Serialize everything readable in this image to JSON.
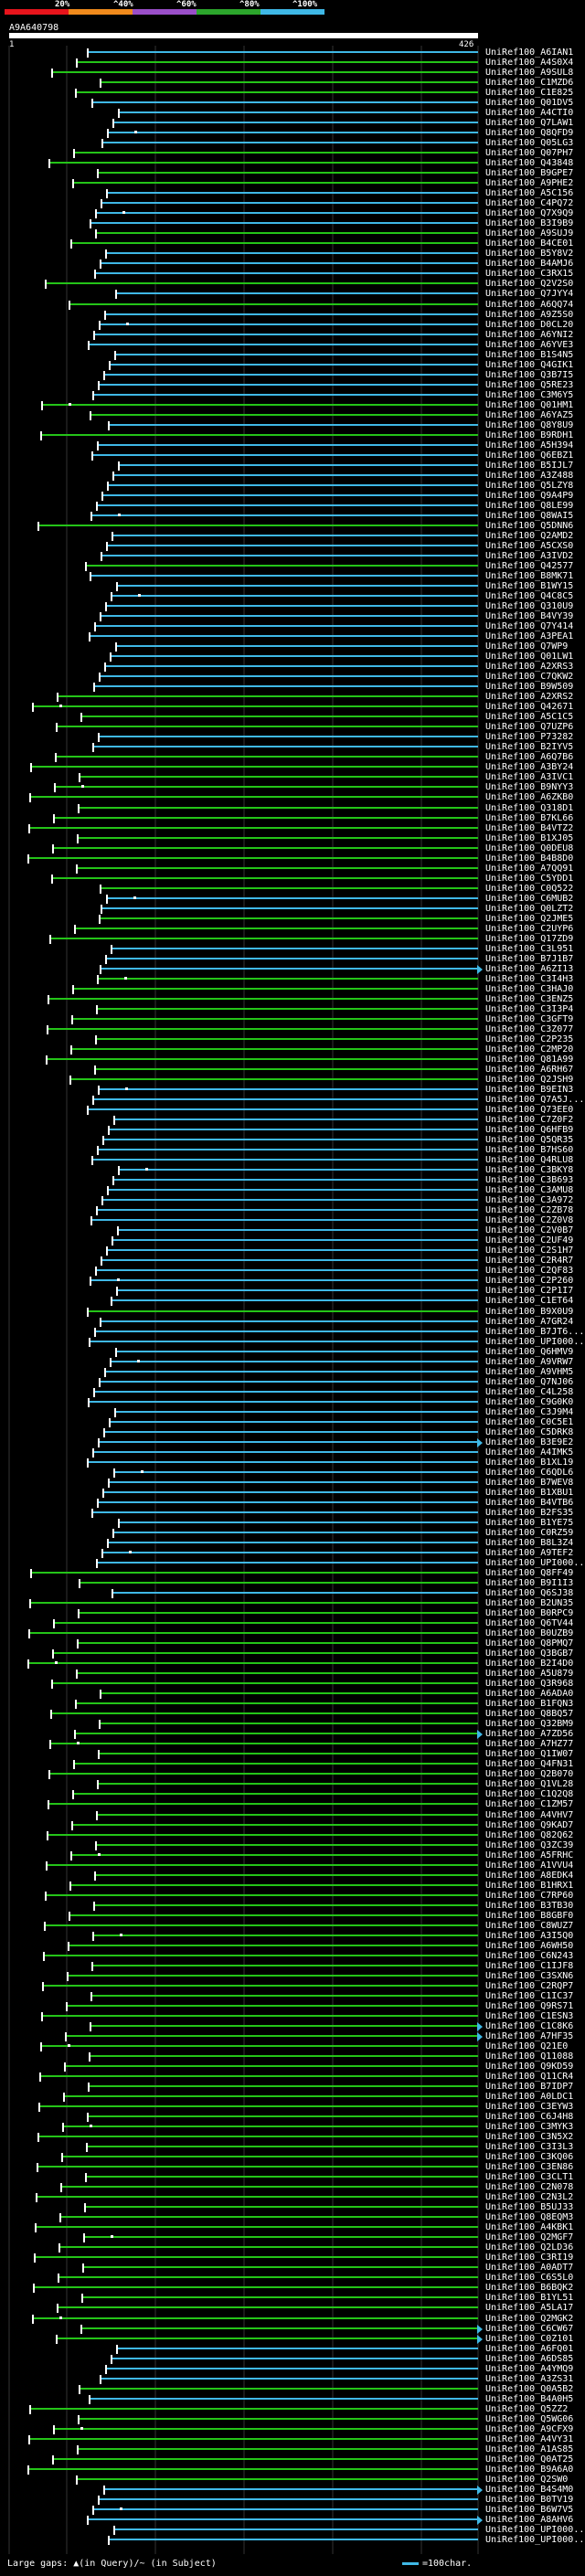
{
  "scale": {
    "labels": [
      "20%",
      "^40%",
      "^60%",
      "^80%",
      "^100%"
    ],
    "bands": [
      "#e8141c",
      "#f08a1c",
      "#9a4ec8",
      "#2ca62c",
      "#3fb8e6"
    ]
  },
  "query": {
    "id": "A9A640798",
    "start": "1",
    "end": "426"
  },
  "legend": {
    "gaps": "Large gaps: ▲(in Query)/~ (in Subject)",
    "unit": "=100char."
  },
  "hits": [
    {
      "n": "UniRef100_A6IAN1",
      "c": "b"
    },
    {
      "n": "UniRef100_A4S0X4",
      "c": "g"
    },
    {
      "n": "UniRef100_A9SUL8",
      "c": "g"
    },
    {
      "n": "UniRef100_C1MZD6",
      "c": "g"
    },
    {
      "n": "UniRef100_C1E825",
      "c": "g"
    },
    {
      "n": "UniRef100_Q01DV5",
      "c": "b"
    },
    {
      "n": "UniRef100_A4CTI0",
      "c": "b"
    },
    {
      "n": "UniRef100_Q7LAW1",
      "c": "b"
    },
    {
      "n": "UniRef100_Q8QFD9",
      "c": "b"
    },
    {
      "n": "UniRef100_Q05LG3",
      "c": "b"
    },
    {
      "n": "UniRef100_Q07PH7",
      "c": "g"
    },
    {
      "n": "UniRef100_Q43848",
      "c": "g"
    },
    {
      "n": "UniRef100_B9GPE7",
      "c": "g"
    },
    {
      "n": "UniRef100_A9PHE2",
      "c": "g"
    },
    {
      "n": "UniRef100_A5C156",
      "c": "b"
    },
    {
      "n": "UniRef100_C4PQ72",
      "c": "b"
    },
    {
      "n": "UniRef100_Q7X9Q9",
      "c": "b"
    },
    {
      "n": "UniRef100_B3I9B9",
      "c": "b"
    },
    {
      "n": "UniRef100_A9SUJ9",
      "c": "g"
    },
    {
      "n": "UniRef100_B4CE01",
      "c": "g"
    },
    {
      "n": "UniRef100_B5Y8V2",
      "c": "b"
    },
    {
      "n": "UniRef100_B4AMJ6",
      "c": "b"
    },
    {
      "n": "UniRef100_C3RX15",
      "c": "b"
    },
    {
      "n": "UniRef100_Q2V2S0",
      "c": "g"
    },
    {
      "n": "UniRef100_Q7JYY4",
      "c": "b"
    },
    {
      "n": "UniRef100_A6QQ74",
      "c": "g"
    },
    {
      "n": "UniRef100_A9Z5S0",
      "c": "b"
    },
    {
      "n": "UniRef100_D0CL20",
      "c": "b"
    },
    {
      "n": "UniRef100_A6YNI2",
      "c": "b"
    },
    {
      "n": "UniRef100_A6YVE3",
      "c": "b"
    },
    {
      "n": "UniRef100_B1S4N5",
      "c": "b"
    },
    {
      "n": "UniRef100_Q4GIK1",
      "c": "b"
    },
    {
      "n": "UniRef100_Q3B7I5",
      "c": "b"
    },
    {
      "n": "UniRef100_Q5RE23",
      "c": "b"
    },
    {
      "n": "UniRef100_C3M6Y5",
      "c": "b"
    },
    {
      "n": "UniRef100_Q01HM1",
      "c": "g"
    },
    {
      "n": "UniRef100_A6YAZ5",
      "c": "g"
    },
    {
      "n": "UniRef100_Q8Y8U9",
      "c": "b"
    },
    {
      "n": "UniRef100_B9RDH1",
      "c": "g"
    },
    {
      "n": "UniRef100_A5H394",
      "c": "b"
    },
    {
      "n": "UniRef100_Q6EBZ1",
      "c": "b"
    },
    {
      "n": "UniRef100_B5IJL7",
      "c": "b"
    },
    {
      "n": "UniRef100_A3Z488",
      "c": "b"
    },
    {
      "n": "UniRef100_Q5LZY8",
      "c": "b"
    },
    {
      "n": "UniRef100_Q9A4P9",
      "c": "b"
    },
    {
      "n": "UniRef100_Q8LE99",
      "c": "b"
    },
    {
      "n": "UniRef100_Q8WAI5",
      "c": "b"
    },
    {
      "n": "UniRef100_Q5DNN6",
      "c": "g"
    },
    {
      "n": "UniRef100_Q2AMD2",
      "c": "b"
    },
    {
      "n": "UniRef100_A5CXS0",
      "c": "b"
    },
    {
      "n": "UniRef100_A3IVD2",
      "c": "b"
    },
    {
      "n": "UniRef100_Q42577",
      "c": "g"
    },
    {
      "n": "UniRef100_B8MK71",
      "c": "b"
    },
    {
      "n": "UniRef100_B1WY15",
      "c": "b"
    },
    {
      "n": "UniRef100_Q4C8C5",
      "c": "b"
    },
    {
      "n": "UniRef100_Q310U9",
      "c": "b"
    },
    {
      "n": "UniRef100_B4VY39",
      "c": "b"
    },
    {
      "n": "UniRef100_Q7Y414",
      "c": "b"
    },
    {
      "n": "UniRef100_A3PEA1",
      "c": "b"
    },
    {
      "n": "UniRef100_Q7WP9",
      "c": "b"
    },
    {
      "n": "UniRef100_Q01LW1",
      "c": "b"
    },
    {
      "n": "UniRef100_A2XRS3",
      "c": "b"
    },
    {
      "n": "UniRef100_C7QKW2",
      "c": "b"
    },
    {
      "n": "UniRef100_B9W509",
      "c": "b"
    },
    {
      "n": "UniRef100_A2XRS2",
      "c": "g"
    },
    {
      "n": "UniRef100_Q42671",
      "c": "g"
    },
    {
      "n": "UniRef100_A5C1C5",
      "c": "g"
    },
    {
      "n": "UniRef100_Q7UZP6",
      "c": "g"
    },
    {
      "n": "UniRef100_P73282",
      "c": "b"
    },
    {
      "n": "UniRef100_B2IYV5",
      "c": "b"
    },
    {
      "n": "UniRef100_A6Q7B6",
      "c": "g"
    },
    {
      "n": "UniRef100_A3BY24",
      "c": "g"
    },
    {
      "n": "UniRef100_A3IVC1",
      "c": "g"
    },
    {
      "n": "UniRef100_B9NYY3",
      "c": "g"
    },
    {
      "n": "UniRef100_A6ZKB0",
      "c": "g"
    },
    {
      "n": "UniRef100_Q318D1",
      "c": "g"
    },
    {
      "n": "UniRef100_B7KL66",
      "c": "g"
    },
    {
      "n": "UniRef100_B4VTZ2",
      "c": "g"
    },
    {
      "n": "UniRef100_B1XJ05",
      "c": "g"
    },
    {
      "n": "UniRef100_Q0DEU8",
      "c": "g"
    },
    {
      "n": "UniRef100_B4B8D0",
      "c": "g"
    },
    {
      "n": "UniRef100_A7QQ91",
      "c": "g"
    },
    {
      "n": "UniRef100_C5YDD1",
      "c": "g"
    },
    {
      "n": "UniRef100_C0Q522",
      "c": "g"
    },
    {
      "n": "UniRef100_C6MUB2",
      "c": "b"
    },
    {
      "n": "UniRef100_Q0LZT2",
      "c": "b"
    },
    {
      "n": "UniRef100_Q2JME5",
      "c": "g"
    },
    {
      "n": "UniRef100_C2UYP6",
      "c": "g"
    },
    {
      "n": "UniRef100_Q17ZD9",
      "c": "g"
    },
    {
      "n": "UniRef100_C3L951",
      "c": "b"
    },
    {
      "n": "UniRef100_B7J1B7",
      "c": "b"
    },
    {
      "n": "UniRef100_A6ZI13",
      "c": "b",
      "a": 1
    },
    {
      "n": "UniRef100_C3I4H3",
      "c": "g"
    },
    {
      "n": "UniRef100_C3HAJ0",
      "c": "g"
    },
    {
      "n": "UniRef100_C3ENZ5",
      "c": "g"
    },
    {
      "n": "UniRef100_C3I3P4",
      "c": "g"
    },
    {
      "n": "UniRef100_C3GFT9",
      "c": "g"
    },
    {
      "n": "UniRef100_C3Z077",
      "c": "g"
    },
    {
      "n": "UniRef100_C2P235",
      "c": "g"
    },
    {
      "n": "UniRef100_C2MP20",
      "c": "g"
    },
    {
      "n": "UniRef100_Q81A99",
      "c": "g"
    },
    {
      "n": "UniRef100_A6RH67",
      "c": "g"
    },
    {
      "n": "UniRef100_Q2JSH9",
      "c": "g"
    },
    {
      "n": "UniRef100_B9EIN3",
      "c": "b"
    },
    {
      "n": "UniRef100_Q7A5J...",
      "c": "b"
    },
    {
      "n": "UniRef100_Q73EE0",
      "c": "b"
    },
    {
      "n": "UniRef100_C7Z0F2",
      "c": "b"
    },
    {
      "n": "UniRef100_Q6HFB9",
      "c": "b"
    },
    {
      "n": "UniRef100_Q5QR35",
      "c": "b"
    },
    {
      "n": "UniRef100_B7HS60",
      "c": "b"
    },
    {
      "n": "UniRef100_Q4RLU8",
      "c": "b"
    },
    {
      "n": "UniRef100_C3BKY8",
      "c": "b"
    },
    {
      "n": "UniRef100_C3B693",
      "c": "b"
    },
    {
      "n": "UniRef100_C3AMU8",
      "c": "b"
    },
    {
      "n": "UniRef100_C3A972",
      "c": "b"
    },
    {
      "n": "UniRef100_C2ZB78",
      "c": "b"
    },
    {
      "n": "UniRef100_C2Z0V8",
      "c": "b"
    },
    {
      "n": "UniRef100_C2V0B7",
      "c": "b"
    },
    {
      "n": "UniRef100_C2UF49",
      "c": "b"
    },
    {
      "n": "UniRef100_C2S1H7",
      "c": "b"
    },
    {
      "n": "UniRef100_C2R4R7",
      "c": "b"
    },
    {
      "n": "UniRef100_C2QF83",
      "c": "b"
    },
    {
      "n": "UniRef100_C2P260",
      "c": "b"
    },
    {
      "n": "UniRef100_C2P1I7",
      "c": "b"
    },
    {
      "n": "UniRef100_C1ET64",
      "c": "b"
    },
    {
      "n": "UniRef100_B9X0U9",
      "c": "g"
    },
    {
      "n": "UniRef100_A7GR24",
      "c": "b"
    },
    {
      "n": "UniRef100_B7JT6...",
      "c": "b"
    },
    {
      "n": "UniRef100_UPI000...",
      "c": "b"
    },
    {
      "n": "UniRef100_Q6HMV9",
      "c": "b"
    },
    {
      "n": "UniRef100_A9VRW7",
      "c": "b"
    },
    {
      "n": "UniRef100_A9VHM5",
      "c": "b"
    },
    {
      "n": "UniRef100_Q7NJ06",
      "c": "b"
    },
    {
      "n": "UniRef100_C4L258",
      "c": "b"
    },
    {
      "n": "UniRef100_C9G0K0",
      "c": "b"
    },
    {
      "n": "UniRef100_C3J9M4",
      "c": "b"
    },
    {
      "n": "UniRef100_C0C5E1",
      "c": "b"
    },
    {
      "n": "UniRef100_C5DRK8",
      "c": "b"
    },
    {
      "n": "UniRef100_B3E9E2",
      "c": "b",
      "a": 1
    },
    {
      "n": "UniRef100_A4IMK5",
      "c": "b"
    },
    {
      "n": "UniRef100_B1XL19",
      "c": "b"
    },
    {
      "n": "UniRef100_C6QDL6",
      "c": "b"
    },
    {
      "n": "UniRef100_B7WEV8",
      "c": "b"
    },
    {
      "n": "UniRef100_B1XBU1",
      "c": "b"
    },
    {
      "n": "UniRef100_B4VTB6",
      "c": "b"
    },
    {
      "n": "UniRef100_B2FS35",
      "c": "b"
    },
    {
      "n": "UniRef100_B1YE75",
      "c": "b"
    },
    {
      "n": "UniRef100_C0RZ59",
      "c": "b"
    },
    {
      "n": "UniRef100_B8L3Z4",
      "c": "b"
    },
    {
      "n": "UniRef100_A9TEF2",
      "c": "b"
    },
    {
      "n": "UniRef100_UPI000...",
      "c": "b"
    },
    {
      "n": "UniRef100_Q8FF49",
      "c": "g"
    },
    {
      "n": "UniRef100_B9I1I3",
      "c": "g"
    },
    {
      "n": "UniRef100_Q6SJ38",
      "c": "b"
    },
    {
      "n": "UniRef100_B2UN35",
      "c": "g"
    },
    {
      "n": "UniRef100_B0RPC9",
      "c": "g"
    },
    {
      "n": "UniRef100_Q6TV44",
      "c": "g"
    },
    {
      "n": "UniRef100_B0UZB9",
      "c": "g"
    },
    {
      "n": "UniRef100_Q8PMQ7",
      "c": "g"
    },
    {
      "n": "UniRef100_Q3BGB7",
      "c": "g"
    },
    {
      "n": "UniRef100_B2I4D0",
      "c": "g"
    },
    {
      "n": "UniRef100_A5U879",
      "c": "g"
    },
    {
      "n": "UniRef100_Q3R968",
      "c": "g"
    },
    {
      "n": "UniRef100_A6ADA0",
      "c": "g"
    },
    {
      "n": "UniRef100_B1FQN3",
      "c": "g"
    },
    {
      "n": "UniRef100_Q8BQ57",
      "c": "g"
    },
    {
      "n": "UniRef100_Q32BM9",
      "c": "g"
    },
    {
      "n": "UniRef100_A7ZD56",
      "c": "g",
      "a": 1
    },
    {
      "n": "UniRef100_A7HZ77",
      "c": "g"
    },
    {
      "n": "UniRef100_Q1IW07",
      "c": "g"
    },
    {
      "n": "UniRef100_Q4FN31",
      "c": "g"
    },
    {
      "n": "UniRef100_Q2B070",
      "c": "g"
    },
    {
      "n": "UniRef100_Q1VL28",
      "c": "g"
    },
    {
      "n": "UniRef100_C1Q2Q8",
      "c": "g"
    },
    {
      "n": "UniRef100_C1ZM57",
      "c": "g"
    },
    {
      "n": "UniRef100_A4VHV7",
      "c": "g"
    },
    {
      "n": "UniRef100_Q9KAD7",
      "c": "g"
    },
    {
      "n": "UniRef100_Q82Q62",
      "c": "g"
    },
    {
      "n": "UniRef100_Q3ZC39",
      "c": "g"
    },
    {
      "n": "UniRef100_A5FRHC",
      "c": "g"
    },
    {
      "n": "UniRef100_A1VVU4",
      "c": "g"
    },
    {
      "n": "UniRef100_A8EDK4",
      "c": "g"
    },
    {
      "n": "UniRef100_B1HRX1",
      "c": "g"
    },
    {
      "n": "UniRef100_C7RP60",
      "c": "g"
    },
    {
      "n": "UniRef100_B3TB30",
      "c": "g"
    },
    {
      "n": "UniRef100_B8GBF0",
      "c": "g"
    },
    {
      "n": "UniRef100_C8WUZ7",
      "c": "g"
    },
    {
      "n": "UniRef100_A3I5Q0",
      "c": "g"
    },
    {
      "n": "UniRef100_A6WH50",
      "c": "g"
    },
    {
      "n": "UniRef100_C6N243",
      "c": "g"
    },
    {
      "n": "UniRef100_C1IJF8",
      "c": "g"
    },
    {
      "n": "UniRef100_C3SXN6",
      "c": "g"
    },
    {
      "n": "UniRef100_C2RQP7",
      "c": "g"
    },
    {
      "n": "UniRef100_C1IC37",
      "c": "g"
    },
    {
      "n": "UniRef100_Q9RS71",
      "c": "g"
    },
    {
      "n": "UniRef100_C1ESN3",
      "c": "g"
    },
    {
      "n": "UniRef100_C1C8K6",
      "c": "g",
      "a": 1
    },
    {
      "n": "UniRef100_A7HF35",
      "c": "g",
      "a": 1
    },
    {
      "n": "UniRef100_Q21E0",
      "c": "g"
    },
    {
      "n": "UniRef100_Q11088",
      "c": "g"
    },
    {
      "n": "UniRef100_Q9KD59",
      "c": "g"
    },
    {
      "n": "UniRef100_Q11CR4",
      "c": "g"
    },
    {
      "n": "UniRef100_B7IDP7",
      "c": "g"
    },
    {
      "n": "UniRef100_A0LDC1",
      "c": "g"
    },
    {
      "n": "UniRef100_C3EYW3",
      "c": "g"
    },
    {
      "n": "UniRef100_C6J4H8",
      "c": "g"
    },
    {
      "n": "UniRef100_C3MYK3",
      "c": "g"
    },
    {
      "n": "UniRef100_C3N5X2",
      "c": "g"
    },
    {
      "n": "UniRef100_C3I3L3",
      "c": "g"
    },
    {
      "n": "UniRef100_C3KQ06",
      "c": "g"
    },
    {
      "n": "UniRef100_C3EN86",
      "c": "g"
    },
    {
      "n": "UniRef100_C3CLT1",
      "c": "g"
    },
    {
      "n": "UniRef100_C2N078",
      "c": "g"
    },
    {
      "n": "UniRef100_C2N3L2",
      "c": "g"
    },
    {
      "n": "UniRef100_B5UJ33",
      "c": "g"
    },
    {
      "n": "UniRef100_Q8EQM3",
      "c": "g"
    },
    {
      "n": "UniRef100_A4KBK1",
      "c": "g"
    },
    {
      "n": "UniRef100_Q2MGF7",
      "c": "g"
    },
    {
      "n": "UniRef100_Q2LD36",
      "c": "g"
    },
    {
      "n": "UniRef100_C3RI19",
      "c": "g"
    },
    {
      "n": "UniRef100_A0ADT7",
      "c": "g"
    },
    {
      "n": "UniRef100_C6S5L0",
      "c": "g"
    },
    {
      "n": "UniRef100_B6BQK2",
      "c": "g"
    },
    {
      "n": "UniRef100_B1YL51",
      "c": "g"
    },
    {
      "n": "UniRef100_A5LA17",
      "c": "g"
    },
    {
      "n": "UniRef100_Q2MGK2",
      "c": "g"
    },
    {
      "n": "UniRef100_C6CW67",
      "c": "g",
      "a": 1
    },
    {
      "n": "UniRef100_C0Z101",
      "c": "g",
      "a": 1
    },
    {
      "n": "UniRef100_A6FQ01",
      "c": "b"
    },
    {
      "n": "UniRef100_A6DS85",
      "c": "b"
    },
    {
      "n": "UniRef100_A4YMQ9",
      "c": "b"
    },
    {
      "n": "UniRef100_A3ZS31",
      "c": "b"
    },
    {
      "n": "UniRef100_Q0A5B2",
      "c": "g"
    },
    {
      "n": "UniRef100_B4A0H5",
      "c": "b"
    },
    {
      "n": "UniRef100_Q5ZZ2",
      "c": "g"
    },
    {
      "n": "UniRef100_Q5WG06",
      "c": "g"
    },
    {
      "n": "UniRef100_A9CFX9",
      "c": "g"
    },
    {
      "n": "UniRef100_A4VY31",
      "c": "g"
    },
    {
      "n": "UniRef100_A1AS85",
      "c": "g"
    },
    {
      "n": "UniRef100_Q0AT25",
      "c": "g"
    },
    {
      "n": "UniRef100_B9A6A0",
      "c": "g"
    },
    {
      "n": "UniRef100_Q2SW0",
      "c": "g"
    },
    {
      "n": "UniRef100_B4S4M0",
      "c": "b",
      "a": 1
    },
    {
      "n": "UniRef100_B0TV19",
      "c": "b"
    },
    {
      "n": "UniRef100_B6W7V5",
      "c": "b"
    },
    {
      "n": "UniRef100_A8AHV6",
      "c": "b",
      "a": 1
    },
    {
      "n": "UniRef100_UPI000...",
      "c": "b"
    },
    {
      "n": "UniRef100_UPI000...",
      "c": "b"
    }
  ]
}
